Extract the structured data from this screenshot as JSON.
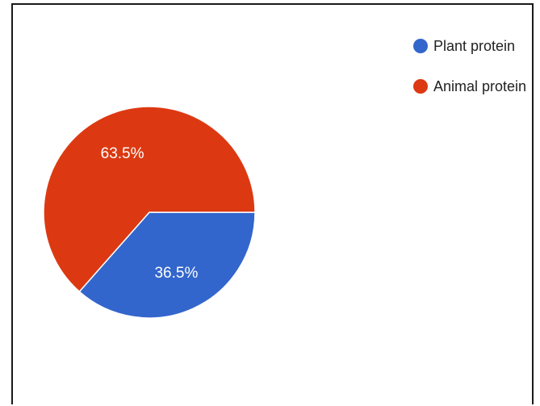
{
  "chart_data": {
    "type": "pie",
    "categories": [
      "Plant protein",
      "Animal protein"
    ],
    "values": [
      36.5,
      63.5
    ],
    "value_labels": [
      "36.5%",
      "63.5%"
    ],
    "colors": [
      "#3366cc",
      "#dc3912"
    ],
    "legend_position": "top-right",
    "title": ""
  }
}
